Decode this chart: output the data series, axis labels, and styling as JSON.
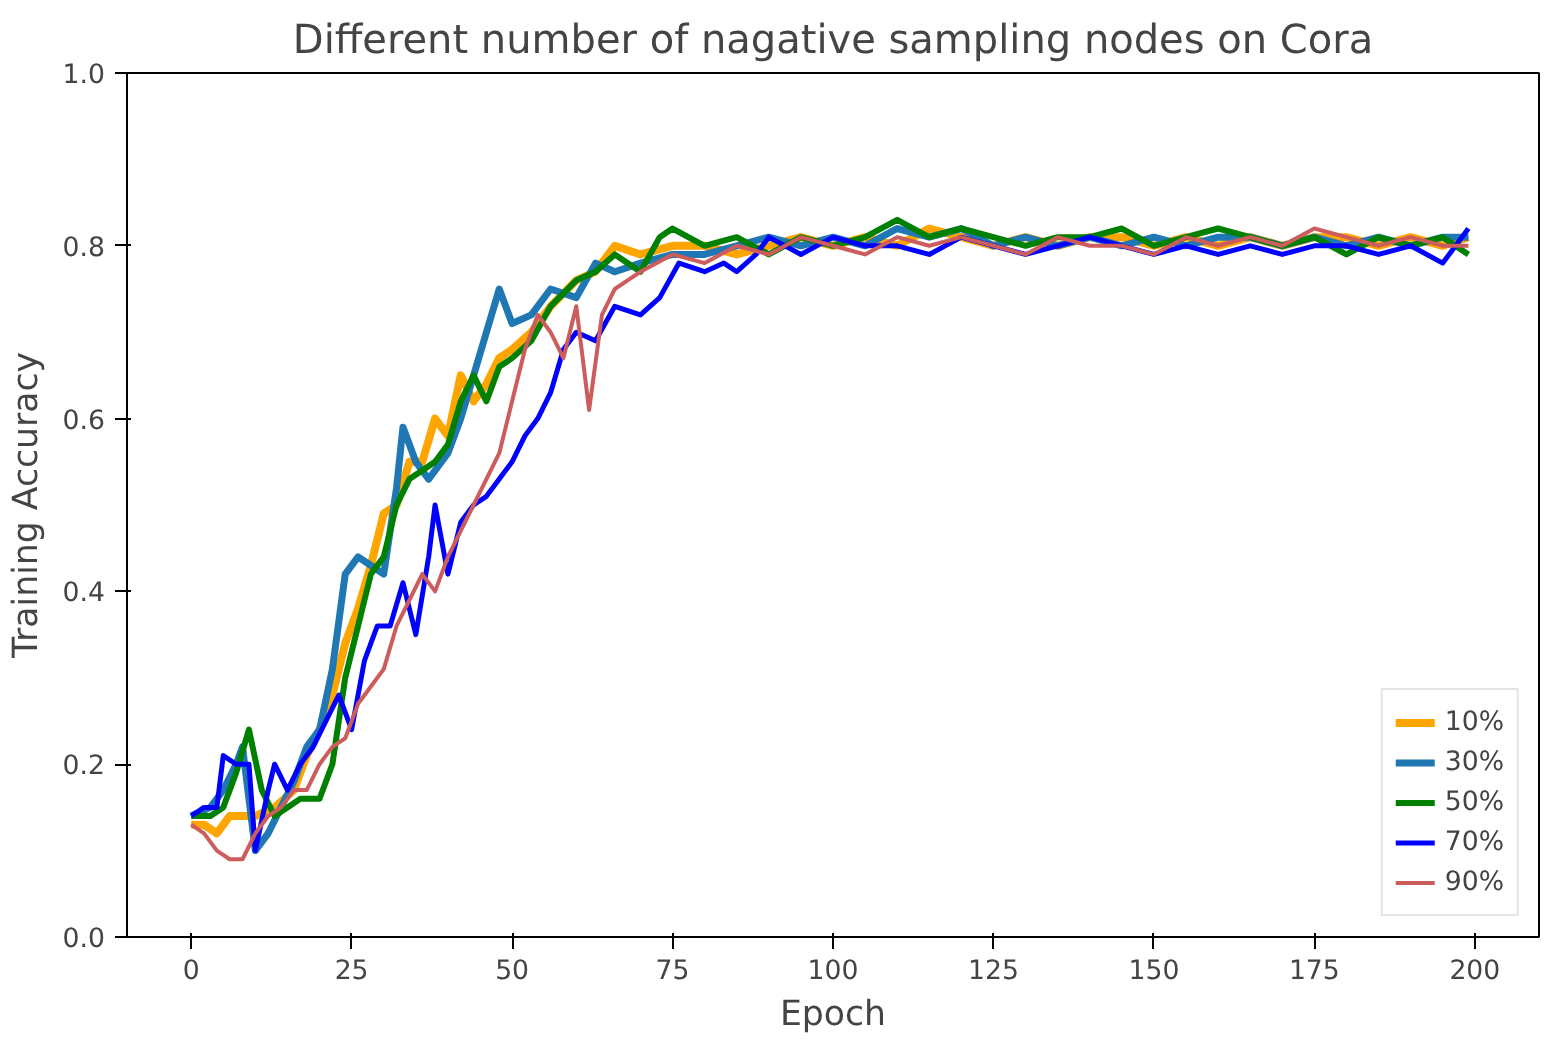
{
  "chart_data": {
    "type": "line",
    "title": "Different number of nagative sampling nodes on Cora",
    "xlabel": "Epoch",
    "ylabel": "Training Accuracy",
    "xlim": [
      -10,
      210
    ],
    "ylim": [
      0,
      1
    ],
    "xticks": [
      0,
      25,
      50,
      75,
      100,
      125,
      150,
      175,
      200
    ],
    "yticks": [
      {
        "value": 0,
        "label": "0.0"
      },
      {
        "value": 0.2,
        "label": "0.2"
      },
      {
        "value": 0.4,
        "label": "0.4"
      },
      {
        "value": 0.6,
        "label": "0.6"
      },
      {
        "value": 0.8,
        "label": "0.8"
      },
      {
        "value": 1,
        "label": "1.0"
      }
    ],
    "grid": false,
    "legend": "bottom right",
    "line_style": "solid",
    "marker": "none",
    "series": [
      {
        "name": "10%",
        "color": "#ffa500",
        "x": [
          0,
          2,
          4,
          6,
          8,
          10,
          13,
          16,
          18,
          20,
          22,
          24,
          26,
          28,
          30,
          32,
          34,
          36,
          38,
          40,
          42,
          44,
          46,
          48,
          50,
          53,
          56,
          60,
          63,
          66,
          70,
          75,
          80,
          85,
          90,
          95,
          100,
          105,
          110,
          115,
          120,
          125,
          130,
          135,
          140,
          145,
          150,
          155,
          160,
          165,
          170,
          175,
          180,
          185,
          190,
          195,
          199
        ],
        "values": [
          0.13,
          0.13,
          0.12,
          0.14,
          0.14,
          0.14,
          0.15,
          0.17,
          0.21,
          0.24,
          0.28,
          0.34,
          0.38,
          0.43,
          0.49,
          0.5,
          0.55,
          0.55,
          0.6,
          0.58,
          0.65,
          0.62,
          0.64,
          0.67,
          0.68,
          0.7,
          0.73,
          0.76,
          0.77,
          0.8,
          0.79,
          0.8,
          0.8,
          0.79,
          0.8,
          0.81,
          0.8,
          0.81,
          0.8,
          0.82,
          0.81,
          0.8,
          0.81,
          0.8,
          0.81,
          0.81,
          0.8,
          0.81,
          0.8,
          0.81,
          0.8,
          0.81,
          0.81,
          0.8,
          0.81,
          0.8,
          0.81
        ]
      },
      {
        "name": "30%",
        "color": "#1f77b4",
        "x": [
          0,
          3,
          5,
          7,
          8,
          10,
          12,
          14,
          16,
          18,
          20,
          22,
          24,
          26,
          28,
          30,
          32,
          33,
          35,
          37,
          40,
          42,
          44,
          46,
          48,
          50,
          53,
          56,
          60,
          63,
          66,
          70,
          75,
          80,
          85,
          90,
          95,
          100,
          105,
          110,
          115,
          120,
          125,
          130,
          135,
          140,
          145,
          150,
          155,
          160,
          165,
          170,
          175,
          180,
          185,
          190,
          195,
          199
        ],
        "values": [
          0.14,
          0.15,
          0.17,
          0.2,
          0.22,
          0.1,
          0.12,
          0.15,
          0.18,
          0.22,
          0.24,
          0.31,
          0.42,
          0.44,
          0.43,
          0.42,
          0.52,
          0.59,
          0.55,
          0.53,
          0.56,
          0.6,
          0.65,
          0.7,
          0.75,
          0.71,
          0.72,
          0.75,
          0.74,
          0.78,
          0.77,
          0.78,
          0.79,
          0.79,
          0.8,
          0.81,
          0.8,
          0.81,
          0.8,
          0.82,
          0.81,
          0.82,
          0.8,
          0.81,
          0.8,
          0.81,
          0.8,
          0.81,
          0.8,
          0.81,
          0.81,
          0.8,
          0.81,
          0.8,
          0.81,
          0.8,
          0.81,
          0.81
        ]
      },
      {
        "name": "50%",
        "color": "#008000",
        "x": [
          0,
          3,
          5,
          7,
          9,
          11,
          13,
          15,
          17,
          20,
          22,
          24,
          26,
          28,
          30,
          32,
          34,
          36,
          38,
          40,
          42,
          44,
          46,
          48,
          50,
          53,
          56,
          60,
          63,
          66,
          70,
          73,
          75,
          80,
          85,
          90,
          95,
          100,
          105,
          110,
          115,
          120,
          125,
          130,
          135,
          140,
          145,
          150,
          155,
          160,
          165,
          170,
          175,
          180,
          185,
          190,
          195,
          199
        ],
        "values": [
          0.14,
          0.14,
          0.15,
          0.19,
          0.24,
          0.17,
          0.14,
          0.15,
          0.16,
          0.16,
          0.2,
          0.3,
          0.36,
          0.42,
          0.44,
          0.5,
          0.53,
          0.54,
          0.55,
          0.57,
          0.62,
          0.65,
          0.62,
          0.66,
          0.67,
          0.69,
          0.73,
          0.76,
          0.77,
          0.79,
          0.77,
          0.81,
          0.82,
          0.8,
          0.81,
          0.79,
          0.81,
          0.8,
          0.81,
          0.83,
          0.81,
          0.82,
          0.81,
          0.8,
          0.81,
          0.81,
          0.82,
          0.8,
          0.81,
          0.82,
          0.81,
          0.8,
          0.81,
          0.79,
          0.81,
          0.8,
          0.81,
          0.79
        ]
      },
      {
        "name": "70%",
        "color": "#0000ff",
        "x": [
          0,
          2,
          4,
          5,
          7,
          9,
          10,
          12,
          13,
          15,
          17,
          19,
          21,
          23,
          25,
          27,
          29,
          31,
          33,
          35,
          37,
          38,
          40,
          42,
          44,
          46,
          48,
          50,
          52,
          54,
          56,
          58,
          60,
          63,
          66,
          70,
          73,
          76,
          80,
          83,
          85,
          88,
          90,
          95,
          100,
          105,
          110,
          115,
          120,
          125,
          130,
          135,
          140,
          145,
          150,
          155,
          160,
          165,
          170,
          175,
          180,
          185,
          190,
          195,
          199
        ],
        "values": [
          0.14,
          0.15,
          0.15,
          0.21,
          0.2,
          0.2,
          0.1,
          0.17,
          0.2,
          0.17,
          0.2,
          0.22,
          0.25,
          0.28,
          0.24,
          0.32,
          0.36,
          0.36,
          0.41,
          0.35,
          0.44,
          0.5,
          0.42,
          0.48,
          0.5,
          0.51,
          0.53,
          0.55,
          0.58,
          0.6,
          0.63,
          0.68,
          0.7,
          0.69,
          0.73,
          0.72,
          0.74,
          0.78,
          0.77,
          0.78,
          0.77,
          0.79,
          0.81,
          0.79,
          0.81,
          0.8,
          0.8,
          0.79,
          0.81,
          0.8,
          0.79,
          0.8,
          0.81,
          0.8,
          0.79,
          0.8,
          0.79,
          0.8,
          0.79,
          0.8,
          0.8,
          0.79,
          0.8,
          0.78,
          0.82
        ]
      },
      {
        "name": "90%",
        "color": "#cd5c5c",
        "x": [
          0,
          2,
          4,
          6,
          8,
          10,
          12,
          14,
          16,
          18,
          20,
          22,
          24,
          26,
          28,
          30,
          32,
          34,
          36,
          38,
          40,
          42,
          44,
          46,
          48,
          50,
          52,
          54,
          56,
          58,
          60,
          62,
          64,
          66,
          68,
          70,
          75,
          80,
          85,
          90,
          95,
          100,
          105,
          110,
          115,
          120,
          125,
          130,
          135,
          140,
          145,
          150,
          155,
          160,
          165,
          170,
          175,
          180,
          185,
          190,
          195,
          199
        ],
        "values": [
          0.13,
          0.12,
          0.1,
          0.09,
          0.09,
          0.12,
          0.14,
          0.15,
          0.17,
          0.17,
          0.2,
          0.22,
          0.23,
          0.27,
          0.29,
          0.31,
          0.36,
          0.39,
          0.42,
          0.4,
          0.44,
          0.47,
          0.5,
          0.53,
          0.56,
          0.62,
          0.68,
          0.72,
          0.7,
          0.67,
          0.73,
          0.61,
          0.72,
          0.75,
          0.76,
          0.77,
          0.79,
          0.78,
          0.8,
          0.79,
          0.81,
          0.8,
          0.79,
          0.81,
          0.8,
          0.81,
          0.8,
          0.79,
          0.81,
          0.8,
          0.8,
          0.79,
          0.81,
          0.8,
          0.81,
          0.8,
          0.82,
          0.81,
          0.8,
          0.81,
          0.8,
          0.8
        ]
      }
    ]
  }
}
